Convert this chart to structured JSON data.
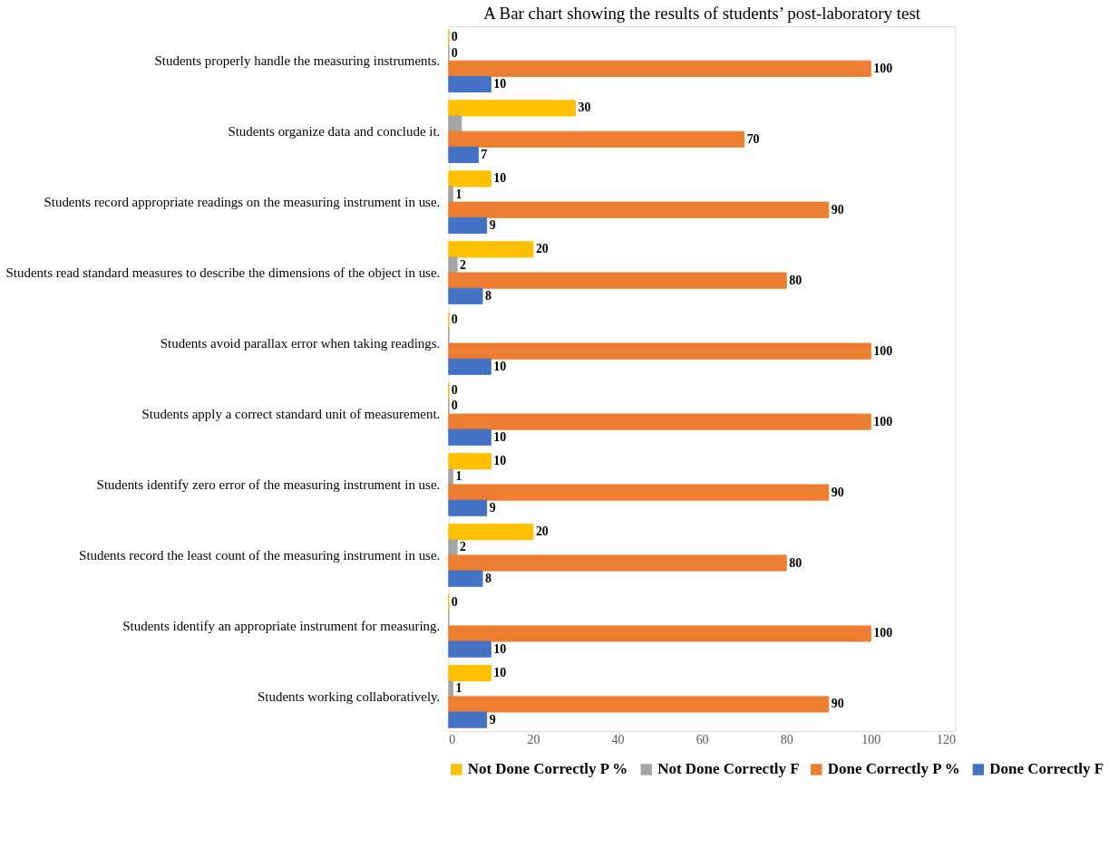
{
  "chart_data": {
    "type": "bar",
    "orientation": "horizontal",
    "title": "A Bar chart showing the results of students’ post-laboratory test",
    "categories": [
      "Students properly handle the measuring instruments.",
      "Students organize data and conclude it.",
      "Students record appropriate readings on the measuring instrument in use.",
      "Students read standard measures to describe the dimensions of the object in use.",
      "Students avoid parallax error when taking readings.",
      "Students apply a correct standard unit of measurement.",
      "Students identify zero error of the measuring instrument in use.",
      "Students record the least count of the measuring instrument in use.",
      "Students identify an appropriate instrument for measuring.",
      "Students working collaboratively."
    ],
    "series": [
      {
        "name": "Not Done Correctly P %",
        "color": "#ffc000",
        "values": [
          0,
          30,
          10,
          20,
          0,
          0,
          10,
          20,
          0,
          10
        ],
        "value_labels": [
          "0",
          "30",
          "10",
          "20",
          "0",
          "0",
          "10",
          "20",
          "0",
          "10"
        ]
      },
      {
        "name": "Not Done Correctly F",
        "color": "#a5a5a5",
        "values": [
          0,
          3,
          1,
          2,
          0,
          0,
          1,
          2,
          0,
          1
        ],
        "value_labels": [
          "0",
          null,
          "1",
          "2",
          null,
          "0",
          "1",
          "2",
          null,
          "1"
        ]
      },
      {
        "name": "Done Correctly P %",
        "color": "#ed7d31",
        "values": [
          100,
          70,
          90,
          80,
          100,
          100,
          90,
          80,
          100,
          90
        ],
        "value_labels": [
          "100",
          "70",
          "90",
          "80",
          "100",
          "100",
          "90",
          "80",
          "100",
          "90"
        ]
      },
      {
        "name": "Done Correctly F",
        "color": "#4472c4",
        "values": [
          10,
          7,
          9,
          8,
          10,
          10,
          9,
          8,
          10,
          9
        ],
        "value_labels": [
          "10",
          "7",
          "9",
          "8",
          "10",
          "10",
          "9",
          "8",
          "10",
          "9"
        ]
      }
    ],
    "xlim": [
      0,
      120
    ],
    "xticks": [
      0,
      20,
      40,
      60,
      80,
      100,
      120
    ],
    "grid": false,
    "legend": "bottom"
  }
}
